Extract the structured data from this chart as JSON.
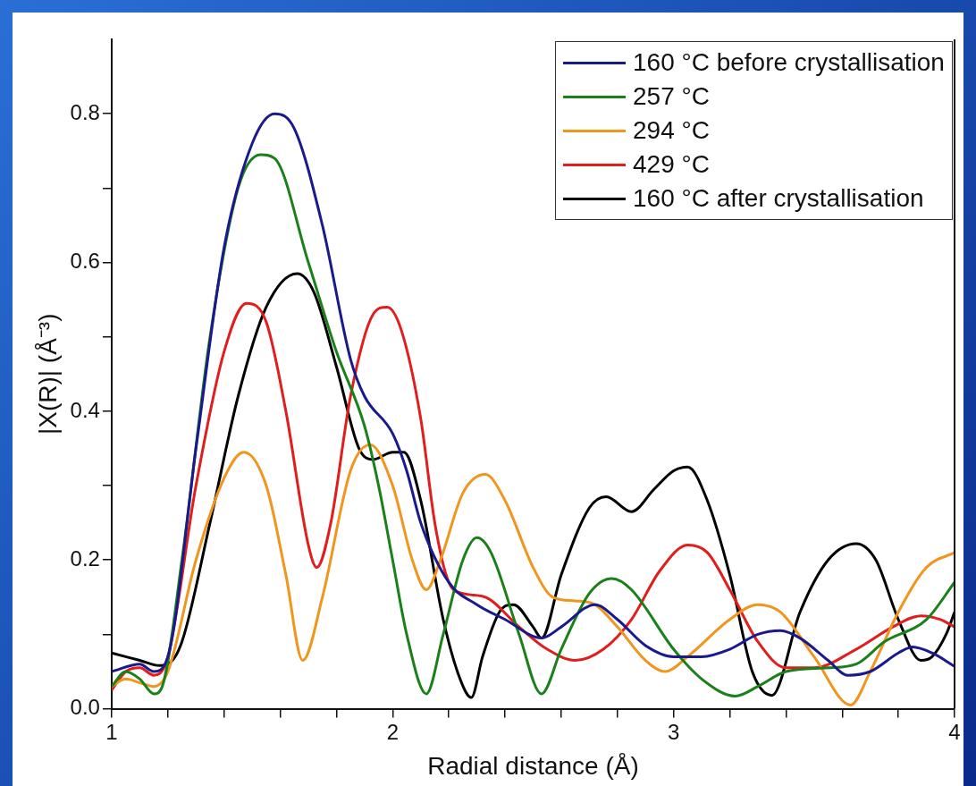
{
  "chart_data": {
    "type": "line",
    "xlabel": "Radial distance (Å)",
    "ylabel": "|X(R)| (Å⁻³)",
    "xlim": [
      1,
      4
    ],
    "xticks": [
      1,
      {
        "value": 1.2,
        "label": null
      },
      {
        "value": 1.4,
        "label": null
      },
      {
        "value": 1.6,
        "label": null
      },
      {
        "value": 1.8,
        "label": null
      },
      2,
      {
        "value": 2.2,
        "label": null
      },
      {
        "value": 2.4,
        "label": null
      },
      {
        "value": 2.6,
        "label": null
      },
      {
        "value": 2.8,
        "label": null
      },
      3,
      {
        "value": 3.2,
        "label": null
      },
      {
        "value": 3.4,
        "label": null
      },
      {
        "value": 3.6,
        "label": null
      },
      {
        "value": 3.8,
        "label": null
      },
      4
    ],
    "ylim": [
      0,
      0.9
    ],
    "yticks": [
      {
        "value": 0,
        "label": "0.0"
      },
      {
        "value": 0.1,
        "label": null
      },
      {
        "value": 0.2,
        "label": "0.2"
      },
      {
        "value": 0.3,
        "label": null
      },
      {
        "value": 0.4,
        "label": "0.4"
      },
      {
        "value": 0.5,
        "label": null
      },
      {
        "value": 0.6,
        "label": "0.6"
      },
      {
        "value": 0.7,
        "label": null
      },
      {
        "value": 0.8,
        "label": "0.8"
      }
    ],
    "grid": false,
    "legend": "top right",
    "marker": "none",
    "line_style": "solid",
    "series": [
      {
        "name": "160 °C before crystallisation",
        "color": "#1a1a8c",
        "x": [
          1.0,
          1.1,
          1.15,
          1.2,
          1.3,
          1.4,
          1.5,
          1.58,
          1.65,
          1.75,
          1.85,
          1.9,
          2.0,
          2.05,
          2.1,
          2.2,
          2.3,
          2.4,
          2.53,
          2.6,
          2.72,
          2.8,
          2.9,
          3.0,
          3.1,
          3.2,
          3.3,
          3.38,
          3.45,
          3.55,
          3.62,
          3.7,
          3.8,
          3.85,
          3.92,
          4.0
        ],
        "values": [
          0.05,
          0.06,
          0.05,
          0.07,
          0.35,
          0.62,
          0.76,
          0.8,
          0.78,
          0.65,
          0.47,
          0.42,
          0.37,
          0.32,
          0.25,
          0.17,
          0.14,
          0.12,
          0.095,
          0.11,
          0.14,
          0.12,
          0.085,
          0.07,
          0.07,
          0.08,
          0.1,
          0.105,
          0.095,
          0.065,
          0.045,
          0.05,
          0.075,
          0.083,
          0.075,
          0.057
        ]
      },
      {
        "name": "257 °C",
        "color": "#1a801a",
        "x": [
          1.0,
          1.05,
          1.1,
          1.15,
          1.18,
          1.25,
          1.35,
          1.45,
          1.53,
          1.58,
          1.7,
          1.8,
          1.9,
          1.95,
          2.0,
          2.05,
          2.12,
          2.18,
          2.25,
          2.3,
          2.35,
          2.45,
          2.53,
          2.6,
          2.7,
          2.78,
          2.85,
          3.0,
          3.1,
          3.22,
          3.3,
          3.4,
          3.55,
          3.65,
          3.75,
          3.9,
          4.0
        ],
        "values": [
          0.03,
          0.05,
          0.04,
          0.02,
          0.03,
          0.2,
          0.5,
          0.7,
          0.745,
          0.74,
          0.6,
          0.48,
          0.38,
          0.3,
          0.2,
          0.1,
          0.02,
          0.1,
          0.2,
          0.23,
          0.21,
          0.1,
          0.02,
          0.08,
          0.155,
          0.175,
          0.16,
          0.08,
          0.04,
          0.017,
          0.03,
          0.05,
          0.055,
          0.06,
          0.09,
          0.12,
          0.17
        ]
      },
      {
        "name": "294 °C",
        "color": "#f0961e",
        "x": [
          1.0,
          1.05,
          1.1,
          1.15,
          1.2,
          1.3,
          1.4,
          1.47,
          1.55,
          1.62,
          1.68,
          1.75,
          1.85,
          1.92,
          2.0,
          2.07,
          2.12,
          2.17,
          2.25,
          2.33,
          2.4,
          2.5,
          2.57,
          2.65,
          2.72,
          2.8,
          2.9,
          2.97,
          3.05,
          3.2,
          3.3,
          3.38,
          3.5,
          3.63,
          3.7,
          3.8,
          3.9,
          4.0
        ],
        "values": [
          0.03,
          0.04,
          0.035,
          0.03,
          0.05,
          0.2,
          0.31,
          0.345,
          0.3,
          0.18,
          0.065,
          0.15,
          0.32,
          0.355,
          0.3,
          0.2,
          0.16,
          0.2,
          0.29,
          0.315,
          0.28,
          0.19,
          0.15,
          0.145,
          0.14,
          0.11,
          0.065,
          0.05,
          0.07,
          0.12,
          0.14,
          0.13,
          0.07,
          0.005,
          0.05,
          0.13,
          0.19,
          0.21
        ]
      },
      {
        "name": "429 °C",
        "color": "#e01e1e",
        "x": [
          1.0,
          1.05,
          1.1,
          1.15,
          1.2,
          1.3,
          1.4,
          1.48,
          1.55,
          1.62,
          1.7,
          1.73,
          1.78,
          1.85,
          1.93,
          1.98,
          2.03,
          2.1,
          2.15,
          2.2,
          2.25,
          2.33,
          2.45,
          2.55,
          2.65,
          2.75,
          2.85,
          2.95,
          3.05,
          3.12,
          3.2,
          3.3,
          3.4,
          3.5,
          3.65,
          3.78,
          3.88,
          3.95,
          4.0
        ],
        "values": [
          0.025,
          0.05,
          0.055,
          0.045,
          0.07,
          0.3,
          0.48,
          0.545,
          0.52,
          0.4,
          0.22,
          0.19,
          0.25,
          0.42,
          0.53,
          0.54,
          0.51,
          0.39,
          0.25,
          0.17,
          0.155,
          0.15,
          0.11,
          0.08,
          0.065,
          0.08,
          0.12,
          0.185,
          0.22,
          0.21,
          0.16,
          0.09,
          0.055,
          0.055,
          0.08,
          0.11,
          0.125,
          0.12,
          0.11
        ]
      },
      {
        "name": "160 °C after crystallisation",
        "color": "#000000",
        "x": [
          1.0,
          1.1,
          1.17,
          1.2,
          1.25,
          1.35,
          1.45,
          1.55,
          1.66,
          1.72,
          1.8,
          1.88,
          1.93,
          2.0,
          2.04,
          2.1,
          2.18,
          2.24,
          2.28,
          2.32,
          2.38,
          2.43,
          2.5,
          2.53,
          2.6,
          2.7,
          2.76,
          2.85,
          2.93,
          3.0,
          3.05,
          3.12,
          3.2,
          3.28,
          3.35,
          3.45,
          3.55,
          3.65,
          3.72,
          3.8,
          3.88,
          3.92,
          3.97,
          4.0
        ],
        "values": [
          0.075,
          0.065,
          0.058,
          0.06,
          0.09,
          0.25,
          0.42,
          0.54,
          0.585,
          0.56,
          0.46,
          0.35,
          0.335,
          0.345,
          0.345,
          0.28,
          0.12,
          0.04,
          0.015,
          0.07,
          0.13,
          0.14,
          0.11,
          0.095,
          0.18,
          0.27,
          0.285,
          0.265,
          0.295,
          0.32,
          0.325,
          0.28,
          0.18,
          0.05,
          0.018,
          0.13,
          0.2,
          0.222,
          0.2,
          0.12,
          0.065,
          0.07,
          0.1,
          0.13
        ]
      }
    ]
  }
}
